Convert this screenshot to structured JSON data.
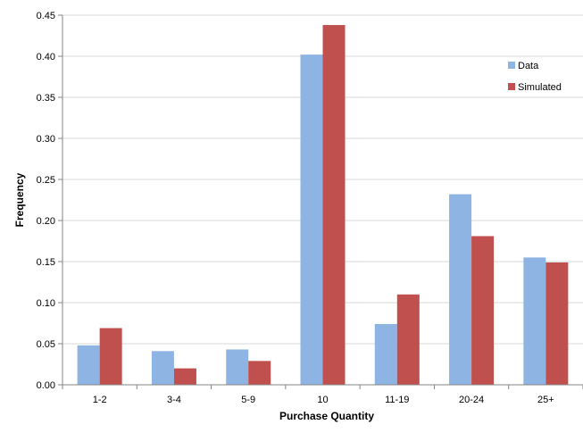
{
  "chart_data": {
    "type": "bar",
    "title": "",
    "xlabel": "Purchase Quantity",
    "ylabel": "Frequency",
    "categories": [
      "1-2",
      "3-4",
      "5-9",
      "10",
      "11-19",
      "20-24",
      "25+"
    ],
    "series": [
      {
        "name": "Data",
        "color": "#8EB4E3",
        "values": [
          0.048,
          0.041,
          0.043,
          0.402,
          0.074,
          0.232,
          0.155
        ]
      },
      {
        "name": "Simulated",
        "color": "#C0504D",
        "values": [
          0.069,
          0.02,
          0.029,
          0.438,
          0.11,
          0.181,
          0.149
        ]
      }
    ],
    "ylim": [
      0,
      0.45
    ],
    "yticks": [
      "0.00",
      "0.05",
      "0.10",
      "0.15",
      "0.20",
      "0.25",
      "0.30",
      "0.35",
      "0.40",
      "0.45"
    ],
    "grid": true,
    "legend": "right"
  }
}
